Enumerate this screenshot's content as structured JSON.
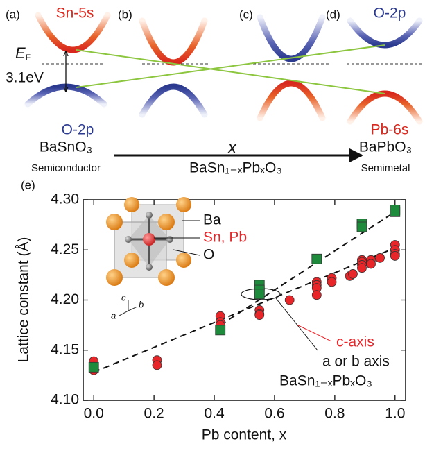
{
  "schematic": {
    "panels": [
      "(a)",
      "(b)",
      "(c)",
      "(d)"
    ],
    "sn5s": "Sn-5s",
    "o2p_top": "O-2p",
    "o2p_bottom": "O-2p",
    "pb6s": "Pb-6s",
    "ef": {
      "symbol": "E",
      "sub": "F"
    },
    "gap": "3.1eV",
    "left_compound": "BaSnO₃",
    "left_type": "Semiconductor",
    "arrow_label": "x",
    "middle_compound": "BaSn₁₋ₓPbₓO₃",
    "right_compound": "BaPbO₃",
    "right_type": "Semimetal"
  },
  "chart_data": {
    "type": "scatter",
    "panel": "(e)",
    "x_label": "Pb content, x",
    "y_label": "Lattice constant (Å)",
    "xlim": [
      -0.035,
      1.035
    ],
    "ylim": [
      4.1,
      4.3
    ],
    "xticks": [
      {
        "value": 0,
        "label": "0.0"
      },
      0.2,
      0.4,
      0.6,
      0.8,
      {
        "value": 1,
        "label": "1.0"
      }
    ],
    "yticks": [
      {
        "value": 4.1,
        "label": "4.10"
      },
      4.15,
      {
        "value": 4.2,
        "label": "4.20"
      },
      4.25,
      {
        "value": 4.3,
        "label": "4.30"
      }
    ],
    "series": [
      {
        "name": "c-axis",
        "color": "#e8262a",
        "marker": "circle",
        "x": [
          0,
          0,
          0,
          0.21,
          0.21,
          0.42,
          0.42,
          0.42,
          0.55,
          0.55,
          0.55,
          0.65,
          0.74,
          0.74,
          0.74,
          0.74,
          0.79,
          0.79,
          0.85,
          0.86,
          0.89,
          0.89,
          0.89,
          0.89,
          0.92,
          0.92,
          0.95,
          1,
          1,
          1,
          1
        ],
        "values": [
          4.139,
          4.133,
          4.13,
          4.14,
          4.135,
          4.184,
          4.178,
          4.175,
          4.19,
          4.186,
          4.185,
          4.2,
          4.218,
          4.215,
          4.212,
          4.205,
          4.222,
          4.218,
          4.224,
          4.226,
          4.24,
          4.238,
          4.235,
          4.232,
          4.24,
          4.236,
          4.242,
          4.255,
          4.25,
          4.246,
          4.244
        ]
      },
      {
        "name": "a or b axis",
        "color": "#1e8a3c",
        "marker": "square",
        "x": [
          0,
          0.42,
          0.55,
          0.55,
          0.55,
          0.74,
          0.89,
          0.89,
          1,
          1
        ],
        "values": [
          4.133,
          4.17,
          4.215,
          4.21,
          4.206,
          4.241,
          4.276,
          4.273,
          4.29,
          4.288
        ]
      },
      {
        "color": "#111111",
        "marker": "dashed-line",
        "x": [
          0,
          1
        ],
        "values": [
          4.128,
          4.252
        ]
      },
      {
        "color": "#111111",
        "marker": "dashed-line",
        "x": [
          0.42,
          1
        ],
        "values": [
          4.175,
          4.288
        ]
      }
    ],
    "formula": "BaSn₁₋ₓPbₓO₃",
    "inset": {
      "ba": "Ba",
      "snpb": "Sn, Pb",
      "o": "O",
      "axis_a": "a",
      "axis_b": "b",
      "axis_c": "c"
    }
  }
}
